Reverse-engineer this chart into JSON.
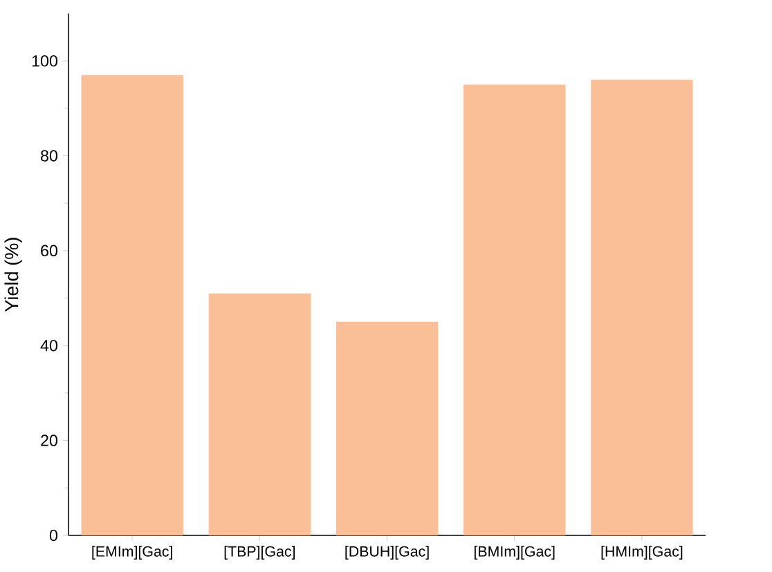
{
  "chart_data": {
    "type": "bar",
    "ylabel": "Yield (%)",
    "categories": [
      "[EMIm][Gac]",
      "[TBP][Gac]",
      "[DBUH][Gac]",
      "[BMIm][Gac]",
      "[HMIm][Gac]"
    ],
    "values": [
      97,
      51,
      45,
      95,
      96
    ],
    "color": "#fbbf98",
    "ylim": [
      0,
      110
    ],
    "yticks": [
      0,
      20,
      40,
      60,
      80,
      100
    ],
    "grid": false
  }
}
